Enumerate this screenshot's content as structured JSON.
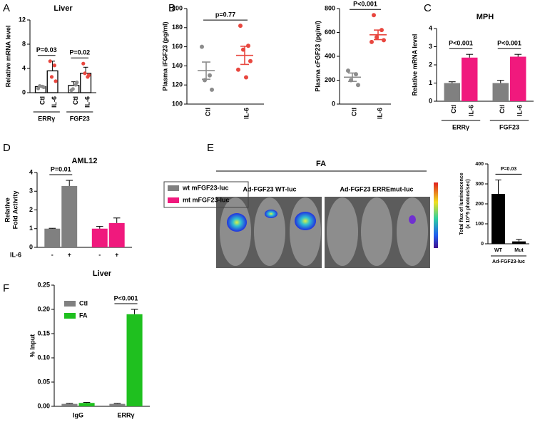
{
  "chart_data": [
    {
      "panel": "A",
      "type": "bar",
      "title": "Liver",
      "ylabel": "Relative mRNA level",
      "ylim": [
        0,
        12
      ],
      "yticks": [
        0,
        4,
        8,
        12
      ],
      "categories": [
        "ERRγ",
        "FGF23"
      ],
      "series": [
        {
          "name": "Ctl",
          "color": "#ffffff",
          "point_color": "#8c8c8c",
          "values": [
            1.0,
            1.2
          ],
          "errors": [
            0.2,
            0.6
          ],
          "points": [
            [
              0.7,
              1.0,
              1.1,
              0.9
            ],
            [
              0.4,
              1.3,
              0.6,
              1.7
            ]
          ]
        },
        {
          "name": "IL-6",
          "color": "#ffffff",
          "point_color": "#e8473f",
          "values": [
            3.6,
            3.2
          ],
          "errors": [
            1.6,
            1.0
          ],
          "points": [
            [
              5.2,
              4.5,
              2.6,
              1.9
            ],
            [
              4.8,
              2.6,
              3.2,
              2.9
            ]
          ]
        }
      ],
      "edge_color": "#000000",
      "rotated_labels": true,
      "annotations": [
        {
          "text": "P=0.03",
          "at": 0
        },
        {
          "text": "P=0.02",
          "at": 1
        }
      ]
    },
    {
      "panel": "B",
      "type": "scatter",
      "ylabel": "Plasma iFGF23 (pg/ml)",
      "ylim": [
        100,
        200
      ],
      "yticks": [
        100,
        120,
        140,
        160,
        180,
        200
      ],
      "categories": [
        "Ctl",
        "IL-6"
      ],
      "series": [
        {
          "color": "#8c8c8c",
          "mean": 135,
          "error": 9,
          "values": [
            160,
            130,
            125,
            115
          ]
        },
        {
          "color": "#e8473f",
          "mean": 151,
          "error": 9.5,
          "values": [
            182,
            161,
            157,
            145,
            136,
            128
          ]
        }
      ],
      "rotated_labels": true,
      "annotations": [
        {
          "text": "p=0.77"
        }
      ]
    },
    {
      "type": "scatter",
      "ylabel": "Plasma cFGF23 (pg/ml)",
      "ylim": [
        0,
        800
      ],
      "yticks": [
        0,
        200,
        400,
        600,
        800
      ],
      "categories": [
        "Ctl",
        "IL-6"
      ],
      "series": [
        {
          "color": "#8c8c8c",
          "mean": 225,
          "error": 35,
          "values": [
            280,
            250,
            200,
            160
          ]
        },
        {
          "color": "#e8473f",
          "mean": 580,
          "error": 40,
          "values": [
            745,
            620,
            560,
            535,
            520
          ]
        }
      ],
      "rotated_labels": true,
      "annotations": [
        {
          "text": "P<0.001"
        }
      ]
    },
    {
      "panel": "C",
      "type": "bar",
      "title": "MPH",
      "ylabel": "Relative mRNA level",
      "ylim": [
        0,
        4
      ],
      "yticks": [
        0,
        1,
        2,
        3,
        4
      ],
      "categories": [
        "ERRγ",
        "FGF23"
      ],
      "series": [
        {
          "name": "Ctl",
          "color": "#808080",
          "values": [
            1.0,
            1.0
          ],
          "errors": [
            0.07,
            0.15
          ]
        },
        {
          "name": "IL-6",
          "color": "#f0197d",
          "values": [
            2.4,
            2.45
          ],
          "errors": [
            0.18,
            0.13
          ]
        }
      ],
      "rotated_labels": true,
      "annotations": [
        {
          "text": "P<0.001",
          "at": 0
        },
        {
          "text": "P<0.001",
          "at": 1
        }
      ]
    },
    {
      "panel": "D",
      "type": "bar",
      "title": "AML12",
      "ylabel": [
        "Relative",
        "Fold Activity"
      ],
      "ylim": [
        0,
        4
      ],
      "yticks": [
        0,
        1,
        2,
        3,
        4
      ],
      "x_labels": [
        "-",
        "+"
      ],
      "x_title": "IL-6",
      "series": [
        {
          "name": "wt mFGF23-luc",
          "color": "#808080",
          "values": [
            1.0,
            3.28
          ],
          "errors": [
            0.02,
            0.3
          ]
        },
        {
          "name": "mt mFGF23-luc",
          "color": "#f0197d",
          "values": [
            1.0,
            1.3
          ],
          "errors": [
            0.12,
            0.27
          ]
        }
      ],
      "legend": "right",
      "annotations": [
        {
          "text": "P=0.01",
          "at": 0
        }
      ]
    },
    {
      "panel": "E",
      "type": "bar",
      "header": "FA",
      "image_titles": [
        "Ad-FGF23 WT-luc",
        "Ad-FGF23 ERREmut-luc"
      ],
      "ylabel": [
        "Total flux of luminescence",
        "(x 10^5 photons/sec)"
      ],
      "ylim": [
        0,
        400
      ],
      "yticks": [
        0,
        100,
        200,
        300,
        400
      ],
      "categories": [
        "WT",
        "Mut"
      ],
      "xlabel": "Ad-FGF23-luc",
      "series": [
        {
          "color": "#000000",
          "values": [
            250,
            12
          ],
          "errors": [
            70,
            10
          ]
        }
      ],
      "annotations": [
        {
          "text": "P=0.03"
        }
      ]
    },
    {
      "panel": "F",
      "type": "bar",
      "title": "Liver",
      "ylabel": "% Input",
      "ylim": [
        0,
        0.25
      ],
      "yticks": [
        {
          "value": 0,
          "label": "0.00"
        },
        {
          "value": 0.05,
          "label": "0.05"
        },
        {
          "value": 0.1,
          "label": "0.10"
        },
        {
          "value": 0.15,
          "label": "0.15"
        },
        {
          "value": 0.2,
          "label": "0.20"
        },
        {
          "value": 0.25,
          "label": "0.25"
        }
      ],
      "categories": [
        "IgG",
        "ERRγ"
      ],
      "series": [
        {
          "name": "Ctl",
          "color": "#808080",
          "values": [
            0.005,
            0.005
          ],
          "errors": [
            0.001,
            0.001
          ]
        },
        {
          "name": "FA",
          "color": "#1fc01f",
          "values": [
            0.007,
            0.19
          ],
          "errors": [
            0.001,
            0.01
          ]
        }
      ],
      "legend": "upper left",
      "annotations": [
        {
          "text": "P<0.001",
          "at": 1
        }
      ]
    }
  ]
}
